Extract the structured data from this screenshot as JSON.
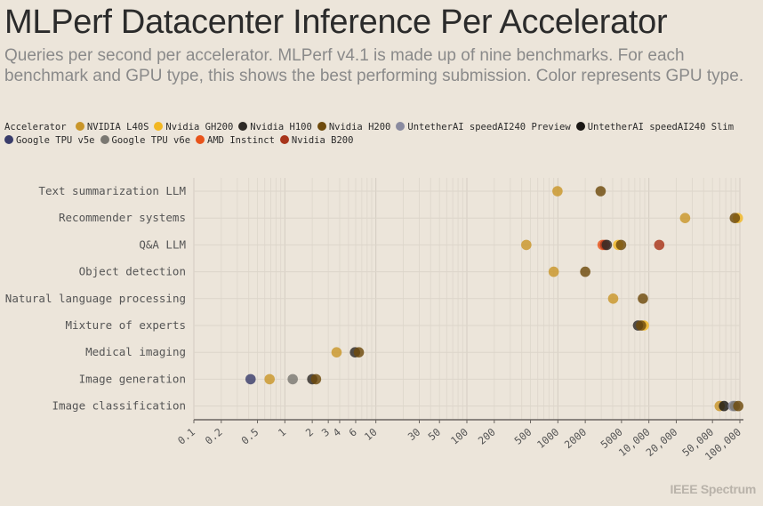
{
  "title": "MLPerf Datacenter Inference Per Accelerator",
  "subtitle": "Queries per second per accelerator. MLPerf v4.1 is made up of nine benchmarks. For each benchmark and GPU type, this shows the best performing submission. Color represents GPU type.",
  "brand": "IEEE Spectrum",
  "legend": {
    "title": "Accelerator",
    "items": [
      {
        "name": "NVIDIA L40S",
        "color": "#c9962a"
      },
      {
        "name": "Nvidia GH200",
        "color": "#f2b722"
      },
      {
        "name": "Nvidia H100",
        "color": "#2e2a26"
      },
      {
        "name": "Nvidia H200",
        "color": "#6e4a0c"
      },
      {
        "name": "UntetherAI speedAI240 Preview",
        "color": "#8a8ba0"
      },
      {
        "name": "UntetherAI speedAI240 Slim",
        "color": "#1a1714"
      },
      {
        "name": "Google TPU v5e",
        "color": "#3a3d6b"
      },
      {
        "name": "Google TPU v6e",
        "color": "#7a7872"
      },
      {
        "name": "AMD Instinct",
        "color": "#e8531a"
      },
      {
        "name": "Nvidia B200",
        "color": "#a8341a"
      }
    ]
  },
  "chart_data": {
    "type": "scatter",
    "xscale": "log",
    "xlim": [
      0.1,
      100000
    ],
    "xticks": [
      {
        "v": 0.1,
        "label": "0.1"
      },
      {
        "v": 0.2,
        "label": "0.2"
      },
      {
        "v": 0.5,
        "label": "0.5"
      },
      {
        "v": 1,
        "label": "1"
      },
      {
        "v": 2,
        "label": "2"
      },
      {
        "v": 3,
        "label": "3"
      },
      {
        "v": 4,
        "label": "4"
      },
      {
        "v": 6,
        "label": "6"
      },
      {
        "v": 10,
        "label": "10"
      },
      {
        "v": 30,
        "label": "30"
      },
      {
        "v": 50,
        "label": "50"
      },
      {
        "v": 100,
        "label": "100"
      },
      {
        "v": 200,
        "label": "200"
      },
      {
        "v": 500,
        "label": "500"
      },
      {
        "v": 1000,
        "label": "1000"
      },
      {
        "v": 2000,
        "label": "2000"
      },
      {
        "v": 5000,
        "label": "5000"
      },
      {
        "v": 10000,
        "label": "10,000"
      },
      {
        "v": 20000,
        "label": "20,000"
      },
      {
        "v": 50000,
        "label": "50,000"
      },
      {
        "v": 100000,
        "label": "100,000"
      }
    ],
    "categories": [
      "Text summarization LLM",
      "Recommender systems",
      "Q&A LLM",
      "Object detection",
      "Natural language processing",
      "Mixture of experts",
      "Medical imaging",
      "Image generation",
      "Image classification"
    ],
    "points": [
      {
        "cat": "Text summarization LLM",
        "acc": "NVIDIA L40S",
        "x": 990
      },
      {
        "cat": "Text summarization LLM",
        "acc": "Nvidia H200",
        "x": 2950
      },
      {
        "cat": "Recommender systems",
        "acc": "NVIDIA L40S",
        "x": 25000
      },
      {
        "cat": "Recommender systems",
        "acc": "Nvidia GH200",
        "x": 95000
      },
      {
        "cat": "Recommender systems",
        "acc": "Nvidia H200",
        "x": 88000
      },
      {
        "cat": "Q&A LLM",
        "acc": "NVIDIA L40S",
        "x": 450
      },
      {
        "cat": "Q&A LLM",
        "acc": "AMD Instinct",
        "x": 3100
      },
      {
        "cat": "Q&A LLM",
        "acc": "Nvidia B200",
        "x": 3300
      },
      {
        "cat": "Q&A LLM",
        "acc": "Nvidia H100",
        "x": 3450
      },
      {
        "cat": "Q&A LLM",
        "acc": "Nvidia GH200",
        "x": 4600
      },
      {
        "cat": "Q&A LLM",
        "acc": "Nvidia H200",
        "x": 4950
      },
      {
        "cat": "Q&A LLM",
        "acc": "Nvidia B200",
        "x": 13000
      },
      {
        "cat": "Object detection",
        "acc": "NVIDIA L40S",
        "x": 900
      },
      {
        "cat": "Object detection",
        "acc": "Nvidia H200",
        "x": 2000
      },
      {
        "cat": "Natural language processing",
        "acc": "NVIDIA L40S",
        "x": 4050
      },
      {
        "cat": "Natural language processing",
        "acc": "Nvidia H200",
        "x": 8600
      },
      {
        "cat": "Mixture of experts",
        "acc": "Nvidia GH200",
        "x": 8800
      },
      {
        "cat": "Mixture of experts",
        "acc": "Nvidia H100",
        "x": 7600
      },
      {
        "cat": "Mixture of experts",
        "acc": "Nvidia H200",
        "x": 8200
      },
      {
        "cat": "Medical imaging",
        "acc": "NVIDIA L40S",
        "x": 3.7
      },
      {
        "cat": "Medical imaging",
        "acc": "Nvidia H100",
        "x": 5.9
      },
      {
        "cat": "Medical imaging",
        "acc": "Nvidia H200",
        "x": 6.5
      },
      {
        "cat": "Image generation",
        "acc": "Google TPU v5e",
        "x": 0.42
      },
      {
        "cat": "Image generation",
        "acc": "NVIDIA L40S",
        "x": 0.68
      },
      {
        "cat": "Image generation",
        "acc": "Google TPU v6e",
        "x": 1.22
      },
      {
        "cat": "Image generation",
        "acc": "Nvidia H100",
        "x": 2.0
      },
      {
        "cat": "Image generation",
        "acc": "Nvidia H200",
        "x": 2.2
      },
      {
        "cat": "Image classification",
        "acc": "NVIDIA L40S",
        "x": 60000
      },
      {
        "cat": "Image classification",
        "acc": "UntetherAI speedAI240 Slim",
        "x": 67000
      },
      {
        "cat": "Image classification",
        "acc": "UntetherAI speedAI240 Preview",
        "x": 84000
      },
      {
        "cat": "Image classification",
        "acc": "Google TPU v6e",
        "x": 88000
      },
      {
        "cat": "Image classification",
        "acc": "Nvidia H200",
        "x": 96000
      }
    ]
  }
}
